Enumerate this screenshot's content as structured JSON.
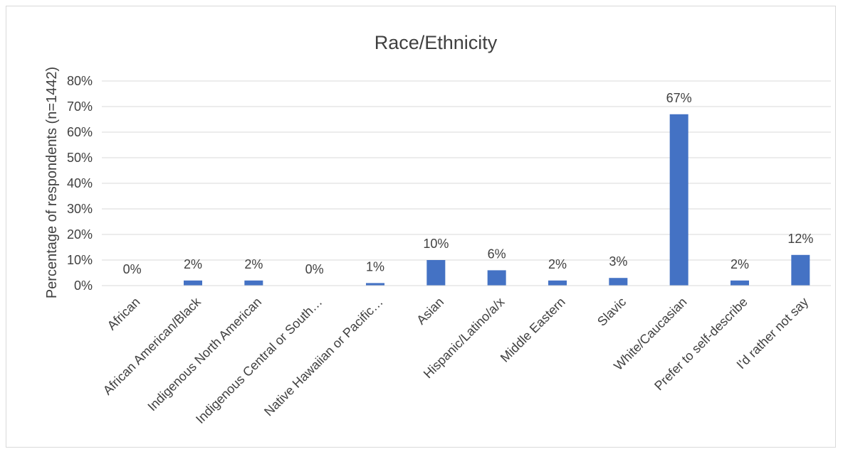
{
  "chart_data": {
    "type": "bar",
    "title": "Race/Ethnicity",
    "xlabel": "",
    "ylabel": "Percentage of respondents (n=1442)",
    "ylim": [
      0,
      80
    ],
    "ytick_step": 10,
    "ytick_suffix": "%",
    "grid": true,
    "legend": "none",
    "bar_color": "#4472c4",
    "categories": [
      "African",
      "African American/Black",
      "Indigenous North American",
      "Indigenous Central or South…",
      "Native Hawaiian or Pacific…",
      "Asian",
      "Hispanic/Latino/a/x",
      "Middle Eastern",
      "Slavic",
      "White/Caucasian",
      "Prefer to self-describe",
      "I'd rather not say"
    ],
    "values": [
      0,
      2,
      2,
      0,
      1,
      10,
      6,
      2,
      3,
      67,
      2,
      12
    ],
    "data_labels": [
      "0%",
      "2%",
      "2%",
      "0%",
      "1%",
      "10%",
      "6%",
      "2%",
      "3%",
      "67%",
      "2%",
      "12%"
    ]
  }
}
